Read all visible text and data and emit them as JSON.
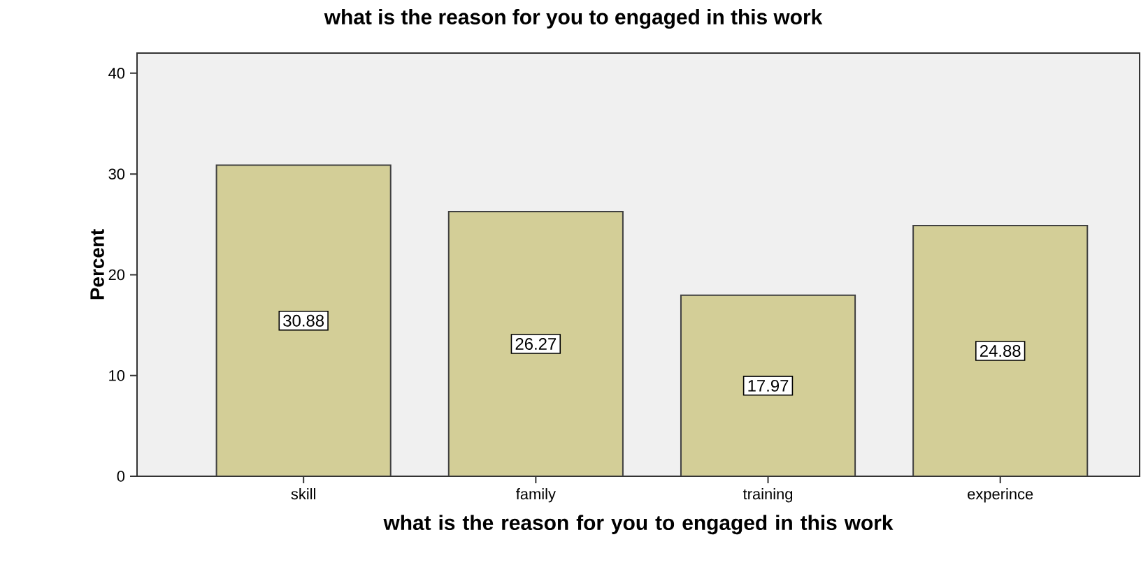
{
  "chart_data": {
    "type": "bar",
    "title": "what is the reason for you to engaged in this work",
    "xlabel": "what is the reason for you to engaged in this work",
    "ylabel": "Percent",
    "categories": [
      "skill",
      "family",
      "training",
      "experince"
    ],
    "values": [
      30.88,
      26.27,
      17.97,
      24.88
    ],
    "color": "#d3ce97",
    "ylim": [
      0,
      42
    ],
    "yticks": [
      0,
      10,
      20,
      30,
      40
    ],
    "data_labels": true
  }
}
